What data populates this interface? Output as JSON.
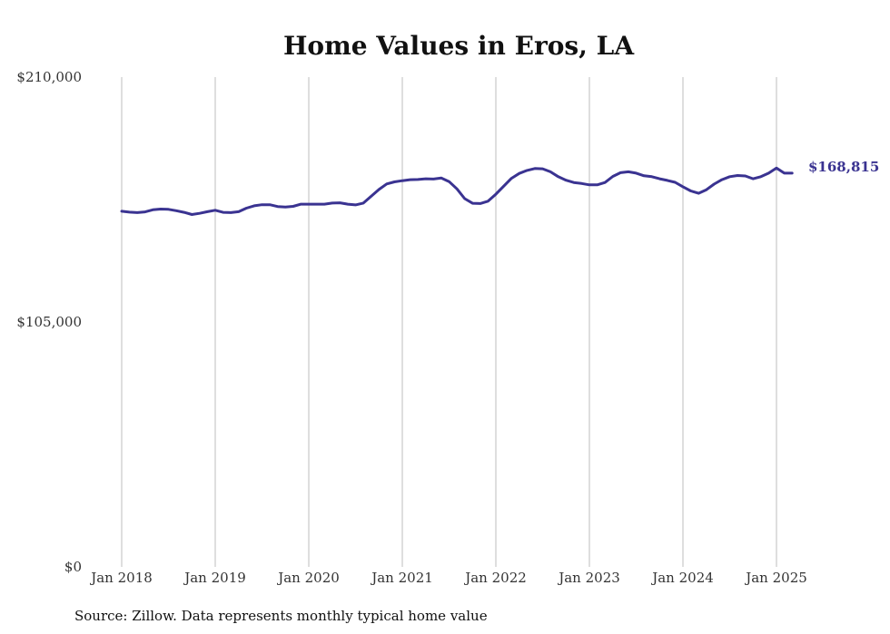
{
  "chart_data": {
    "type": "line",
    "title": "Home Values in Eros, LA",
    "xlabel": "",
    "ylabel": "",
    "ylim": [
      0,
      210000
    ],
    "y_ticks": [
      "$0",
      "$105,000",
      "$210,000"
    ],
    "y_tick_values": [
      0,
      105000,
      210000
    ],
    "x_ticks": [
      "Jan 2018",
      "Jan 2019",
      "Jan 2020",
      "Jan 2021",
      "Jan 2022",
      "Jan 2023",
      "Jan 2024",
      "Jan 2025"
    ],
    "x_tick_dates": [
      "2018-01",
      "2019-01",
      "2020-01",
      "2021-01",
      "2022-01",
      "2023-01",
      "2024-01",
      "2025-01"
    ],
    "grid": "vertical",
    "end_label": "$168,815",
    "series": [
      {
        "color": "#3a3391",
        "points": [
          [
            "2018-01",
            152500
          ],
          [
            "2018-02",
            152100
          ],
          [
            "2018-03",
            151900
          ],
          [
            "2018-04",
            152200
          ],
          [
            "2018-05",
            153100
          ],
          [
            "2018-06",
            153400
          ],
          [
            "2018-07",
            153300
          ],
          [
            "2018-08",
            152700
          ],
          [
            "2018-09",
            152000
          ],
          [
            "2018-10",
            151100
          ],
          [
            "2018-11",
            151600
          ],
          [
            "2018-12",
            152300
          ],
          [
            "2019-01",
            152900
          ],
          [
            "2019-02",
            152000
          ],
          [
            "2019-03",
            151900
          ],
          [
            "2019-04",
            152300
          ],
          [
            "2019-05",
            153800
          ],
          [
            "2019-06",
            154800
          ],
          [
            "2019-07",
            155300
          ],
          [
            "2019-08",
            155300
          ],
          [
            "2019-09",
            154500
          ],
          [
            "2019-10",
            154300
          ],
          [
            "2019-11",
            154600
          ],
          [
            "2019-12",
            155500
          ],
          [
            "2020-01",
            155500
          ],
          [
            "2020-02",
            155500
          ],
          [
            "2020-03",
            155500
          ],
          [
            "2020-04",
            156000
          ],
          [
            "2020-05",
            156100
          ],
          [
            "2020-06",
            155500
          ],
          [
            "2020-07",
            155200
          ],
          [
            "2020-08",
            156000
          ],
          [
            "2020-09",
            158900
          ],
          [
            "2020-10",
            161800
          ],
          [
            "2020-11",
            164200
          ],
          [
            "2020-12",
            165100
          ],
          [
            "2021-01",
            165600
          ],
          [
            "2021-02",
            166000
          ],
          [
            "2021-03",
            166100
          ],
          [
            "2021-04",
            166400
          ],
          [
            "2021-05",
            166300
          ],
          [
            "2021-06",
            166700
          ],
          [
            "2021-07",
            165200
          ],
          [
            "2021-08",
            162100
          ],
          [
            "2021-09",
            157900
          ],
          [
            "2021-10",
            155900
          ],
          [
            "2021-11",
            155800
          ],
          [
            "2021-12",
            156800
          ],
          [
            "2022-01",
            159800
          ],
          [
            "2022-02",
            163200
          ],
          [
            "2022-03",
            166600
          ],
          [
            "2022-04",
            168700
          ],
          [
            "2022-05",
            170000
          ],
          [
            "2022-06",
            170800
          ],
          [
            "2022-07",
            170700
          ],
          [
            "2022-08",
            169400
          ],
          [
            "2022-09",
            167300
          ],
          [
            "2022-10",
            165800
          ],
          [
            "2022-11",
            164800
          ],
          [
            "2022-12",
            164400
          ],
          [
            "2023-01",
            163800
          ],
          [
            "2023-02",
            163800
          ],
          [
            "2023-03",
            164800
          ],
          [
            "2023-04",
            167400
          ],
          [
            "2023-05",
            169000
          ],
          [
            "2023-06",
            169400
          ],
          [
            "2023-07",
            168800
          ],
          [
            "2023-08",
            167700
          ],
          [
            "2023-09",
            167300
          ],
          [
            "2023-10",
            166400
          ],
          [
            "2023-11",
            165700
          ],
          [
            "2023-12",
            164900
          ],
          [
            "2024-01",
            163000
          ],
          [
            "2024-02",
            161200
          ],
          [
            "2024-03",
            160200
          ],
          [
            "2024-04",
            161700
          ],
          [
            "2024-05",
            164100
          ],
          [
            "2024-06",
            166000
          ],
          [
            "2024-07",
            167300
          ],
          [
            "2024-08",
            167800
          ],
          [
            "2024-09",
            167600
          ],
          [
            "2024-10",
            166400
          ],
          [
            "2024-11",
            167300
          ],
          [
            "2024-12",
            168800
          ],
          [
            "2025-01",
            171000
          ],
          [
            "2025-02",
            168815
          ],
          [
            "2025-03",
            168815
          ]
        ]
      }
    ]
  },
  "source_note": "Source: Zillow. Data represents monthly typical home value"
}
